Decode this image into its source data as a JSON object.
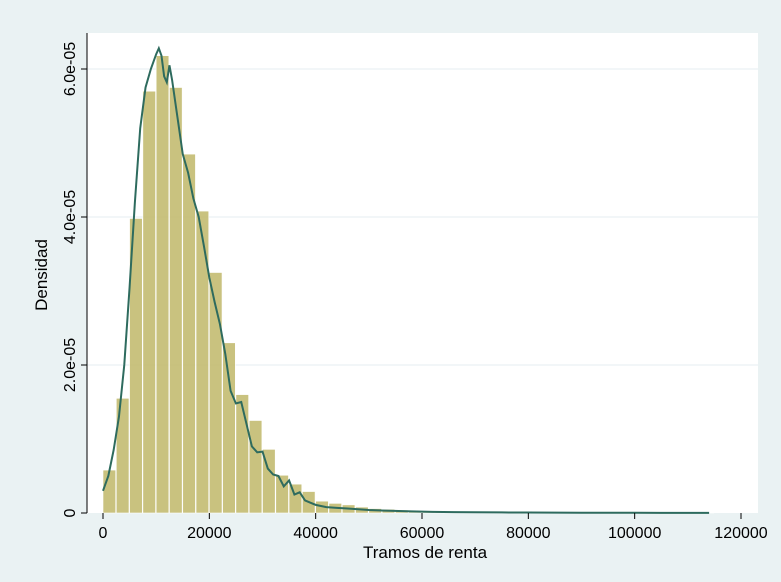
{
  "chart_data": {
    "type": "bar",
    "xlabel": "Tramos de renta",
    "ylabel": "Densidad",
    "xlim": [
      0,
      120000
    ],
    "ylim": [
      0,
      6.5e-05
    ],
    "x_ticks": [
      0,
      20000,
      40000,
      60000,
      80000,
      100000,
      120000
    ],
    "x_tick_labels": [
      "0",
      "20000",
      "40000",
      "60000",
      "80000",
      "100000",
      "120000"
    ],
    "y_ticks": [
      0,
      2e-05,
      4e-05,
      6e-05
    ],
    "y_tick_labels": [
      "0",
      "2.0e-05",
      "4.0e-05",
      "6.0e-05"
    ],
    "grid": true,
    "bin_width": 2500,
    "histogram": {
      "bin_starts": [
        0,
        2500,
        5000,
        7500,
        10000,
        12500,
        15000,
        17500,
        20000,
        22500,
        25000,
        27500,
        30000,
        32500,
        35000,
        37500,
        40000,
        42500,
        45000,
        47500,
        50000,
        52500,
        55000,
        57500,
        60000,
        62500,
        65000,
        67500,
        70000,
        72500,
        75000,
        77500,
        80000,
        82500,
        85000,
        87500,
        90000,
        92500,
        95000,
        97500,
        100000,
        102500,
        105000,
        107500,
        110000,
        112500
      ],
      "values": [
        5.8e-06,
        1.55e-05,
        3.98e-05,
        5.7e-05,
        6.18e-05,
        5.75e-05,
        4.85e-05,
        4.08e-05,
        3.25e-05,
        2.3e-05,
        1.6e-05,
        1.25e-05,
        8.6e-06,
        5.1e-06,
        3.9e-06,
        2.9e-06,
        1.6e-06,
        1.3e-06,
        1.1e-06,
        8e-07,
        6e-07,
        5e-07,
        4e-07,
        3e-07,
        2.5e-07,
        2e-07,
        2e-07,
        1.5e-07,
        1.5e-07,
        1e-07,
        1e-07,
        1e-07,
        1e-07,
        8e-08,
        8e-08,
        5e-08,
        5e-08,
        5e-08,
        5e-08,
        3e-08,
        3e-08,
        3e-08,
        3e-08,
        3e-08,
        3e-08,
        3e-08
      ],
      "color": "#bfb768"
    },
    "density": {
      "x": [
        0,
        1000,
        2000,
        3000,
        4000,
        5000,
        6000,
        7000,
        8000,
        9000,
        10000,
        10500,
        11000,
        11500,
        12000,
        12500,
        13000,
        14000,
        15000,
        16000,
        17000,
        18000,
        19000,
        20000,
        21000,
        22000,
        23000,
        24000,
        25000,
        26000,
        27000,
        28000,
        29000,
        30000,
        31000,
        32000,
        33000,
        34000,
        35000,
        36000,
        37000,
        38000,
        39000,
        40000,
        42000,
        44000,
        46000,
        48000,
        50000,
        54000,
        58000,
        62000,
        66000,
        70000,
        75000,
        80000,
        85000,
        90000,
        95000,
        100000,
        105000,
        110000,
        114000
      ],
      "y": [
        3e-06,
        5e-06,
        8.5e-06,
        1.3e-05,
        2e-05,
        3.05e-05,
        4.2e-05,
        5.2e-05,
        5.75e-05,
        6e-05,
        6.2e-05,
        6.28e-05,
        6.18e-05,
        5.9e-05,
        5.82e-05,
        6.05e-05,
        5.85e-05,
        5.35e-05,
        4.85e-05,
        4.6e-05,
        4.25e-05,
        4e-05,
        3.6e-05,
        3.18e-05,
        2.85e-05,
        2.55e-05,
        2.15e-05,
        1.65e-05,
        1.48e-05,
        1.5e-05,
        1.2e-05,
        9e-06,
        8.2e-06,
        8.3e-06,
        6e-06,
        5.2e-06,
        5e-06,
        3.6e-06,
        4.4e-06,
        2.5e-06,
        2.8e-06,
        1.7e-06,
        1.4e-06,
        1.1e-06,
        8e-07,
        7e-07,
        6e-07,
        5e-07,
        4e-07,
        3e-07,
        2.2e-07,
        1.5e-07,
        1.2e-07,
        1e-07,
        8e-08,
        6e-08,
        5e-08,
        4e-08,
        3e-08,
        3e-08,
        2e-08,
        2e-08,
        1e-08
      ],
      "color": "#2e6b5e"
    },
    "background_color": "#eaf2f3",
    "plot_background_color": "#ffffff"
  }
}
